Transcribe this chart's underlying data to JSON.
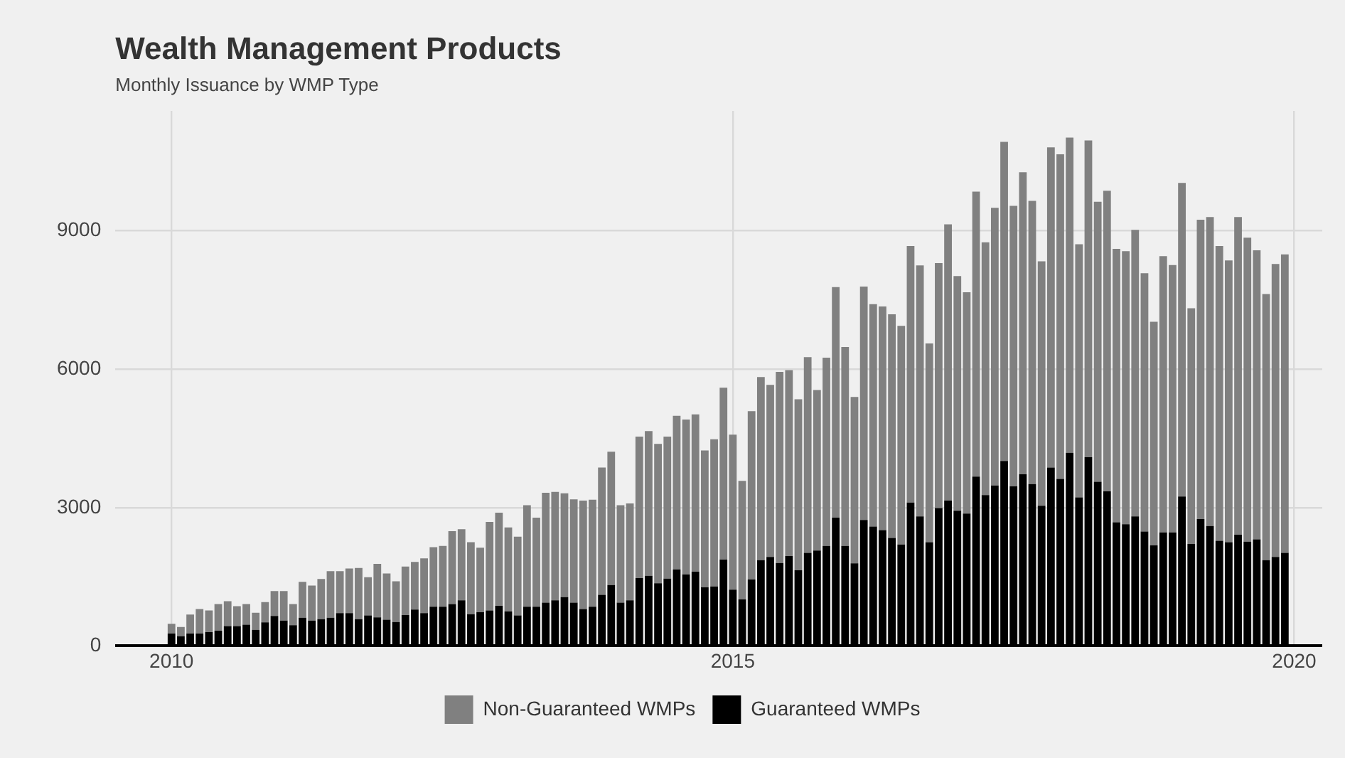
{
  "chart_data": {
    "type": "bar",
    "title": "Wealth Management Products",
    "subtitle": "Monthly Issuance by WMP Type",
    "stacked": true,
    "grid": true,
    "legend": "bottom",
    "x": [
      "2010-01",
      "2010-02",
      "2010-03",
      "2010-04",
      "2010-05",
      "2010-06",
      "2010-07",
      "2010-08",
      "2010-09",
      "2010-10",
      "2010-11",
      "2010-12",
      "2011-01",
      "2011-02",
      "2011-03",
      "2011-04",
      "2011-05",
      "2011-06",
      "2011-07",
      "2011-08",
      "2011-09",
      "2011-10",
      "2011-11",
      "2011-12",
      "2012-01",
      "2012-02",
      "2012-03",
      "2012-04",
      "2012-05",
      "2012-06",
      "2012-07",
      "2012-08",
      "2012-09",
      "2012-10",
      "2012-11",
      "2012-12",
      "2013-01",
      "2013-02",
      "2013-03",
      "2013-04",
      "2013-05",
      "2013-06",
      "2013-07",
      "2013-08",
      "2013-09",
      "2013-10",
      "2013-11",
      "2013-12",
      "2014-01",
      "2014-02",
      "2014-03",
      "2014-04",
      "2014-05",
      "2014-06",
      "2014-07",
      "2014-08",
      "2014-09",
      "2014-10",
      "2014-11",
      "2014-12",
      "2015-01",
      "2015-02",
      "2015-03",
      "2015-04",
      "2015-05",
      "2015-06",
      "2015-07",
      "2015-08",
      "2015-09",
      "2015-10",
      "2015-11",
      "2015-12",
      "2016-01",
      "2016-02",
      "2016-03",
      "2016-04",
      "2016-05",
      "2016-06",
      "2016-07",
      "2016-08",
      "2016-09",
      "2016-10",
      "2016-11",
      "2016-12",
      "2017-01",
      "2017-02",
      "2017-03",
      "2017-04",
      "2017-05",
      "2017-06",
      "2017-07",
      "2017-08",
      "2017-09",
      "2017-10",
      "2017-11",
      "2017-12",
      "2018-01",
      "2018-02",
      "2018-03",
      "2018-04",
      "2018-05",
      "2018-06",
      "2018-07",
      "2018-08",
      "2018-09",
      "2018-10",
      "2018-11",
      "2018-12",
      "2019-01",
      "2019-02",
      "2019-03",
      "2019-04",
      "2019-05",
      "2019-06",
      "2019-07",
      "2019-08",
      "2019-09",
      "2019-10",
      "2019-11",
      "2019-12"
    ],
    "xlim": [
      "2009-07",
      "2020-04"
    ],
    "xticks": [
      "2010",
      "2015",
      "2020"
    ],
    "ylim": [
      0,
      11600
    ],
    "yticks": [
      0,
      3000,
      6000,
      9000
    ],
    "series": [
      {
        "name": "Guaranteed WMPs",
        "color": "#000000",
        "values": [
          270,
          210,
          270,
          270,
          300,
          330,
          430,
          430,
          460,
          350,
          510,
          650,
          550,
          450,
          610,
          550,
          580,
          610,
          710,
          710,
          580,
          660,
          620,
          570,
          520,
          670,
          790,
          710,
          850,
          850,
          910,
          990,
          690,
          730,
          770,
          870,
          750,
          660,
          850,
          850,
          940,
          990,
          1060,
          940,
          800,
          850,
          1110,
          1320,
          940,
          990,
          1470,
          1520,
          1360,
          1460,
          1660,
          1550,
          1610,
          1270,
          1290,
          1870,
          1220,
          1010,
          1440,
          1860,
          1930,
          1800,
          1950,
          1640,
          2020,
          2070,
          2170,
          2780,
          2170,
          1790,
          2730,
          2590,
          2510,
          2340,
          2200,
          3110,
          2810,
          2250,
          2990,
          3150,
          2930,
          2870,
          3670,
          3270,
          3480,
          4010,
          3460,
          3720,
          3510,
          3040,
          3870,
          3620,
          4190,
          3220,
          4090,
          3560,
          3350,
          2680,
          2640,
          2810,
          2480,
          2180,
          2460,
          2460,
          3240,
          2210,
          2750,
          2600,
          2280,
          2250,
          2410,
          2260,
          2310,
          1860,
          1930,
          2020
        ]
      },
      {
        "name": "Non-Guaranteed WMPs",
        "color": "#808080",
        "values": [
          210,
          200,
          410,
          530,
          470,
          580,
          540,
          430,
          450,
          370,
          440,
          540,
          640,
          460,
          780,
          760,
          870,
          1010,
          910,
          970,
          1110,
          830,
          1160,
          1000,
          880,
          1050,
          1030,
          1190,
          1290,
          1320,
          1580,
          1540,
          1560,
          1400,
          1920,
          2020,
          1820,
          1710,
          2200,
          1930,
          2380,
          2350,
          2250,
          2240,
          2350,
          2320,
          2760,
          2890,
          2110,
          2100,
          3070,
          3140,
          3020,
          3080,
          3330,
          3360,
          3410,
          2970,
          3190,
          3730,
          3360,
          2570,
          3650,
          3970,
          3730,
          4140,
          4030,
          3710,
          4240,
          3480,
          4080,
          5000,
          4310,
          3610,
          5060,
          4820,
          4850,
          4850,
          4740,
          5560,
          5440,
          4310,
          5310,
          5990,
          5090,
          4800,
          6180,
          5480,
          6020,
          6920,
          6080,
          6550,
          6140,
          5300,
          6940,
          7040,
          6830,
          5490,
          6870,
          6070,
          6520,
          5930,
          5920,
          6210,
          5600,
          4850,
          5990,
          5800,
          6800,
          5110,
          6490,
          6700,
          6390,
          6110,
          6890,
          6590,
          6270,
          5770,
          6350,
          6470
        ]
      }
    ]
  }
}
